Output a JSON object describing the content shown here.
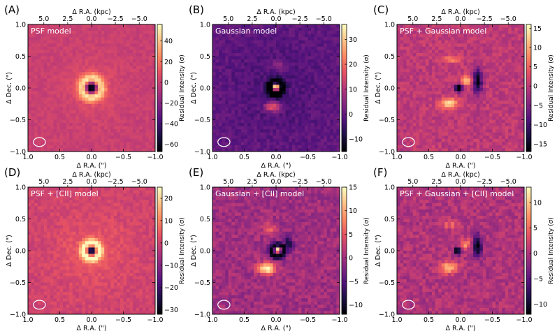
{
  "figure": {
    "background": "#ffffff"
  },
  "colormap": {
    "name": "magma",
    "stops": [
      "#000004",
      "#1c1044",
      "#51127c",
      "#832681",
      "#b73779",
      "#e75263",
      "#fc8961",
      "#fec488",
      "#fcfdbf"
    ]
  },
  "chart_data": [
    {
      "type": "heatmap",
      "panel_label": "(A)",
      "model_label": "PSF model",
      "xlabel": "Δ R.A. (\")",
      "ylabel": "Δ Dec. (\")",
      "top_xlabel": "Δ R.A. (kpc)",
      "xlim": [
        1.0,
        -1.0
      ],
      "ylim": [
        -1.0,
        1.0
      ],
      "xticks": [
        1.0,
        0.5,
        0.0,
        -0.5,
        -1.0
      ],
      "xtick_labels": [
        "1.0",
        "0.5",
        "0.0",
        "−0.5",
        "−1.0"
      ],
      "yticks": [
        -1.0,
        -0.5,
        0.0,
        0.5,
        1.0
      ],
      "ytick_labels": [
        "−1.0",
        "−0.5",
        "0.0",
        "0.5",
        "1.0"
      ],
      "kpc_ticks": [
        5.0,
        2.5,
        0.0,
        -2.5,
        -5.0
      ],
      "kpc_tick_labels": [
        "5.0",
        "2.5",
        "0.0",
        "−2.5",
        "−5.0"
      ],
      "colorbar": {
        "label": "Residual Intensity (σ)",
        "range": [
          -67,
          56
        ],
        "ticks": [
          40,
          20,
          0,
          -20,
          -40,
          -60
        ],
        "tick_labels": [
          "40",
          "20",
          "0",
          "−20",
          "−40",
          "−60"
        ]
      },
      "beam": {
        "x": 0.82,
        "y": -0.85,
        "major": 0.19,
        "minor": 0.14
      },
      "residual_features": [
        {
          "x": 0.0,
          "y": 0.0,
          "sx": 0.07,
          "sy": 0.07,
          "amp": -90
        },
        {
          "ring_r": 0.14,
          "ring_w": 0.06,
          "x": 0.0,
          "y": 0.0,
          "amp": 50
        },
        {
          "x": 0.0,
          "y": 0.0,
          "sx": 0.3,
          "sy": 0.3,
          "amp": 8
        }
      ],
      "noise": 4
    },
    {
      "type": "heatmap",
      "panel_label": "(B)",
      "model_label": "Gaussian model",
      "xlabel": "Δ R.A. (\")",
      "ylabel": "Δ Dec. (\")",
      "top_xlabel": "Δ R.A. (kpc)",
      "xlim": [
        1.0,
        -1.0
      ],
      "ylim": [
        -1.0,
        1.0
      ],
      "xticks": [
        1.0,
        0.5,
        0.0,
        -0.5,
        -1.0
      ],
      "xtick_labels": [
        "1.0",
        "0.5",
        "0.0",
        "−0.5",
        "−1.0"
      ],
      "yticks": [
        -1.0,
        -0.5,
        0.0,
        0.5,
        1.0
      ],
      "ytick_labels": [
        "−1.0",
        "−0.5",
        "0.0",
        "0.5",
        "1.0"
      ],
      "kpc_ticks": [
        5.0,
        2.5,
        0.0,
        -2.5,
        -5.0
      ],
      "kpc_tick_labels": [
        "5.0",
        "2.5",
        "0.0",
        "−2.5",
        "−5.0"
      ],
      "colorbar": {
        "label": "Residual Intensity (σ)",
        "range": [
          -15,
          36
        ],
        "ticks": [
          30,
          20,
          10,
          0,
          -10
        ],
        "tick_labels": [
          "30",
          "20",
          "10",
          "0",
          "−10"
        ]
      },
      "beam": {
        "x": 0.82,
        "y": -0.85,
        "major": 0.19,
        "minor": 0.14
      },
      "residual_features": [
        {
          "ring_r": 0.1,
          "ring_w": 0.04,
          "x": 0.0,
          "y": 0.0,
          "amp": -22
        },
        {
          "x": 0.0,
          "y": 0.02,
          "sx": 0.04,
          "sy": 0.04,
          "amp": 45
        },
        {
          "x": 0.05,
          "y": -0.3,
          "sx": 0.09,
          "sy": 0.05,
          "amp": 20
        },
        {
          "x": -0.03,
          "y": 0.35,
          "sx": 0.08,
          "sy": 0.05,
          "amp": 9
        },
        {
          "x": 0.0,
          "y": 0.0,
          "sx": 0.5,
          "sy": 0.5,
          "amp": -3
        }
      ],
      "noise": 2.5
    },
    {
      "type": "heatmap",
      "panel_label": "(C)",
      "model_label": "PSF + Gaussian model",
      "xlabel": "Δ R.A. (\")",
      "ylabel": "Δ Dec. (\")",
      "top_xlabel": "Δ R.A. (kpc)",
      "xlim": [
        1.0,
        -1.0
      ],
      "ylim": [
        -1.0,
        1.0
      ],
      "xticks": [
        1.0,
        0.5,
        0.0,
        -0.5,
        -1.0
      ],
      "xtick_labels": [
        "1.0",
        "0.5",
        "0.0",
        "−0.5",
        "−1.0"
      ],
      "yticks": [
        -1.0,
        -0.5,
        0.0,
        0.5,
        1.0
      ],
      "ytick_labels": [
        "−1.0",
        "−0.5",
        "0.0",
        "0.5",
        "1.0"
      ],
      "kpc_ticks": [
        5.0,
        2.5,
        0.0,
        -2.5,
        -5.0
      ],
      "kpc_tick_labels": [
        "5.0",
        "2.5",
        "0.0",
        "−2.5",
        "−5.0"
      ],
      "colorbar": {
        "label": "Residual Intensity (σ)",
        "range": [
          -17,
          16
        ],
        "ticks": [
          15,
          10,
          5,
          0,
          -5,
          -10,
          -15
        ],
        "tick_labels": [
          "15",
          "10",
          "5",
          "0",
          "−5",
          "−10",
          "−15"
        ]
      },
      "beam": {
        "x": 0.82,
        "y": -0.85,
        "major": 0.19,
        "minor": 0.14
      },
      "residual_features": [
        {
          "x": 0.03,
          "y": 0.0,
          "sx": 0.04,
          "sy": 0.04,
          "amp": -22
        },
        {
          "x": -0.27,
          "y": 0.1,
          "sx": 0.05,
          "sy": 0.14,
          "amp": -16
        },
        {
          "x": -0.1,
          "y": 0.12,
          "sx": 0.06,
          "sy": 0.05,
          "amp": 13
        },
        {
          "x": 0.18,
          "y": -0.25,
          "sx": 0.1,
          "sy": 0.06,
          "amp": 13
        },
        {
          "x": 0.15,
          "y": 0.45,
          "sx": 0.1,
          "sy": 0.04,
          "amp": 7
        }
      ],
      "noise": 2
    },
    {
      "type": "heatmap",
      "panel_label": "(D)",
      "model_label": "PSF + [CII] model",
      "xlabel": "Δ R.A. (\")",
      "ylabel": "Δ Dec. (\")",
      "top_xlabel": "Δ R.A. (kpc)",
      "xlim": [
        1.0,
        -1.0
      ],
      "ylim": [
        -1.0,
        1.0
      ],
      "xticks": [
        1.0,
        0.5,
        0.0,
        -0.5,
        -1.0
      ],
      "xtick_labels": [
        "1.0",
        "0.5",
        "0.0",
        "−0.5",
        "−1.0"
      ],
      "yticks": [
        -1.0,
        -0.5,
        0.0,
        0.5,
        1.0
      ],
      "ytick_labels": [
        "−1.0",
        "−0.5",
        "0.0",
        "0.5",
        "1.0"
      ],
      "kpc_ticks": [
        5.0,
        2.5,
        0.0,
        -2.5,
        -5.0
      ],
      "kpc_tick_labels": [
        "5.0",
        "2.5",
        "0.0",
        "−2.5",
        "−5.0"
      ],
      "colorbar": {
        "label": "Residual Intensity (σ)",
        "range": [
          -32,
          25
        ],
        "ticks": [
          20,
          10,
          0,
          -10,
          -20,
          -30
        ],
        "tick_labels": [
          "20",
          "10",
          "0",
          "−10",
          "−20",
          "−30"
        ]
      },
      "beam": {
        "x": 0.82,
        "y": -0.85,
        "major": 0.19,
        "minor": 0.14
      },
      "residual_features": [
        {
          "x": 0.0,
          "y": 0.0,
          "sx": 0.05,
          "sy": 0.05,
          "amp": -45
        },
        {
          "ring_r": 0.12,
          "ring_w": 0.05,
          "x": 0.0,
          "y": 0.0,
          "amp": 25
        },
        {
          "x": 0.0,
          "y": 0.0,
          "sx": 0.4,
          "sy": 0.4,
          "amp": 4
        }
      ],
      "noise": 2.5
    },
    {
      "type": "heatmap",
      "panel_label": "(E)",
      "model_label": "Gaussian + [CII] model",
      "xlabel": "Δ R.A. (\")",
      "ylabel": "Δ Dec. (\")",
      "top_xlabel": "Δ R.A. (kpc)",
      "xlim": [
        1.0,
        -1.0
      ],
      "ylim": [
        -1.0,
        1.0
      ],
      "xticks": [
        1.0,
        0.5,
        0.0,
        -0.5,
        -1.0
      ],
      "xtick_labels": [
        "1.0",
        "0.5",
        "0.0",
        "−0.5",
        "−1.0"
      ],
      "yticks": [
        -1.0,
        -0.5,
        0.0,
        0.5,
        1.0
      ],
      "ytick_labels": [
        "−1.0",
        "−0.5",
        "0.0",
        "0.5",
        "1.0"
      ],
      "kpc_ticks": [
        5.0,
        2.5,
        0.0,
        -2.5,
        -5.0
      ],
      "kpc_tick_labels": [
        "5.0",
        "2.5",
        "0.0",
        "−2.5",
        "−5.0"
      ],
      "colorbar": {
        "label": "Residual Intensity (σ)",
        "range": [
          -12,
          15
        ],
        "ticks": [
          15,
          10,
          5,
          0,
          -5,
          -10
        ],
        "tick_labels": [
          "15",
          "10",
          "5",
          "0",
          "−5",
          "−10"
        ]
      },
      "beam": {
        "x": 0.82,
        "y": -0.85,
        "major": 0.19,
        "minor": 0.14
      },
      "residual_features": [
        {
          "ring_r": 0.09,
          "ring_w": 0.04,
          "x": -0.02,
          "y": 0.0,
          "amp": -12
        },
        {
          "x": -0.03,
          "y": 0.02,
          "sx": 0.035,
          "sy": 0.035,
          "amp": 18
        },
        {
          "x": 0.15,
          "y": -0.28,
          "sx": 0.1,
          "sy": 0.06,
          "amp": 15
        },
        {
          "x": -0.2,
          "y": 0.12,
          "sx": 0.05,
          "sy": 0.1,
          "amp": -8
        },
        {
          "x": 0.1,
          "y": 0.35,
          "sx": 0.08,
          "sy": 0.05,
          "amp": 6
        }
      ],
      "noise": 2
    },
    {
      "type": "heatmap",
      "panel_label": "(F)",
      "model_label": "PSF + Gaussian + [CII] model",
      "xlabel": "Δ R.A. (\")",
      "ylabel": "Δ Dec. (\")",
      "top_xlabel": "Δ R.A. (kpc)",
      "xlim": [
        1.0,
        -1.0
      ],
      "ylim": [
        -1.0,
        1.0
      ],
      "xticks": [
        1.0,
        0.5,
        0.0,
        -0.5,
        -1.0
      ],
      "xtick_labels": [
        "1.0",
        "0.5",
        "0.0",
        "−0.5",
        "−1.0"
      ],
      "yticks": [
        -1.0,
        -0.5,
        0.0,
        0.5,
        1.0
      ],
      "ytick_labels": [
        "−1.0",
        "−0.5",
        "0.0",
        "0.5",
        "1.0"
      ],
      "kpc_ticks": [
        5.0,
        2.5,
        0.0,
        -2.5,
        -5.0
      ],
      "kpc_tick_labels": [
        "5.0",
        "2.5",
        "0.0",
        "−2.5",
        "−5.0"
      ],
      "colorbar": {
        "label": "Residual Intensity (σ)",
        "range": [
          -12,
          13
        ],
        "ticks": [
          10,
          5,
          0,
          -5,
          -10
        ],
        "tick_labels": [
          "10",
          "5",
          "0",
          "−5",
          "−10"
        ]
      },
      "beam": {
        "x": 0.82,
        "y": -0.85,
        "major": 0.19,
        "minor": 0.14
      },
      "residual_features": [
        {
          "x": 0.05,
          "y": 0.0,
          "sx": 0.04,
          "sy": 0.04,
          "amp": -14
        },
        {
          "x": -0.27,
          "y": 0.07,
          "sx": 0.05,
          "sy": 0.12,
          "amp": -12
        },
        {
          "x": -0.08,
          "y": 0.1,
          "sx": 0.06,
          "sy": 0.05,
          "amp": 8
        },
        {
          "x": 0.18,
          "y": -0.27,
          "sx": 0.1,
          "sy": 0.06,
          "amp": 10
        },
        {
          "x": 0.15,
          "y": 0.4,
          "sx": 0.1,
          "sy": 0.04,
          "amp": 5
        }
      ],
      "noise": 1.8
    }
  ]
}
